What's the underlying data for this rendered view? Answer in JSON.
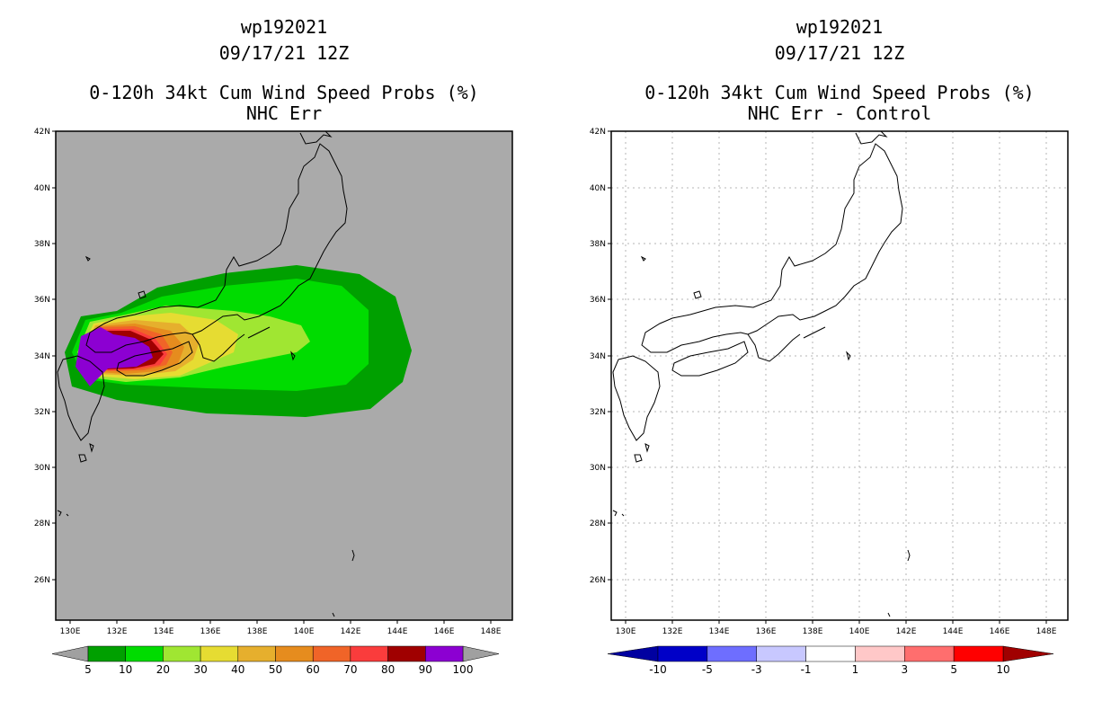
{
  "left_panel": {
    "title_lines": [
      "wp192021",
      "09/17/21 12Z",
      "0-120h 34kt Cum Wind Speed Probs (%)",
      "NHC Err"
    ],
    "lat_labels": [
      "42N",
      "40N",
      "38N",
      "36N",
      "34N",
      "32N",
      "30N",
      "28N",
      "26N"
    ],
    "lon_labels": [
      "130E",
      "132E",
      "134E",
      "136E",
      "138E",
      "140E",
      "142E",
      "144E",
      "146E",
      "148E"
    ],
    "colorbar": {
      "labels": [
        "5",
        "10",
        "20",
        "30",
        "40",
        "50",
        "60",
        "70",
        "80",
        "90",
        "100"
      ],
      "colors": [
        "#00a000",
        "#00dc00",
        "#a0e632",
        "#e6dc32",
        "#e6af2d",
        "#e68c1e",
        "#f06428",
        "#fa3c3c",
        "#a00000",
        "#8c00d2"
      ],
      "under_color": "#a0a0a0",
      "over_color": "#a0a0a0"
    }
  },
  "right_panel": {
    "title_lines": [
      "wp192021",
      "09/17/21 12Z",
      "0-120h 34kt Cum Wind Speed Probs (%)",
      "NHC Err - Control"
    ],
    "lat_labels": [
      "42N",
      "40N",
      "38N",
      "36N",
      "34N",
      "32N",
      "30N",
      "28N",
      "26N"
    ],
    "lon_labels": [
      "130E",
      "132E",
      "134E",
      "136E",
      "138E",
      "140E",
      "142E",
      "144E",
      "146E",
      "148E"
    ],
    "colorbar": {
      "labels": [
        "-10",
        "-5",
        "-3",
        "-1",
        "1",
        "3",
        "5",
        "10"
      ],
      "colors": [
        "#0000c8",
        "#6e6eff",
        "#c8c8ff",
        "#ffffff",
        "#ffc8c8",
        "#ff6e6e",
        "#ff0000"
      ],
      "under_color": "#0000a0",
      "over_color": "#a00000"
    }
  },
  "map_colors": {
    "background_gray": "#aaaaaa",
    "coast": "#000000"
  }
}
